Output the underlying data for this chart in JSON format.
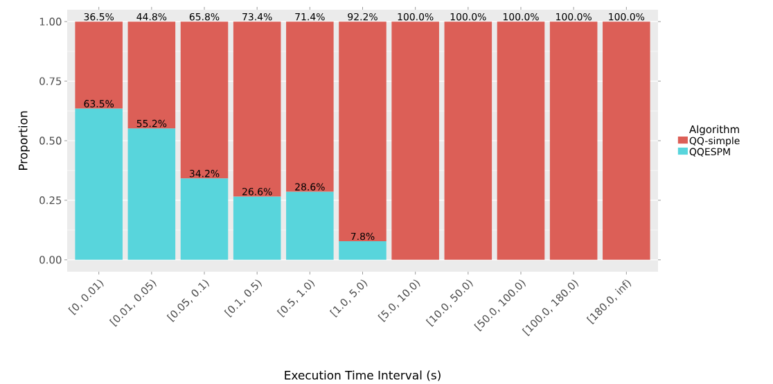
{
  "chart_data": {
    "type": "bar",
    "stacked": true,
    "xlabel": "Execution Time Interval (s)",
    "ylabel": "Proportion",
    "legend_title": "Algorithm",
    "legend": "right",
    "grid": "y",
    "categories": [
      "[0, 0.01)",
      "[0.01, 0.05)",
      "[0.05, 0.1)",
      "[0.1, 0.5)",
      "[0.5, 1.0)",
      "[1.0, 5.0)",
      "[5.0, 10.0)",
      "[10.0, 50.0)",
      "[50.0, 100.0)",
      "[100.0, 180.0)",
      "[180.0, inf)"
    ],
    "ylim": [
      -0.05,
      1.05
    ],
    "yticks": [
      {
        "value": 0,
        "label": "0.00"
      },
      {
        "value": 0.25,
        "label": "0.25"
      },
      {
        "value": 0.5,
        "label": "0.50"
      },
      {
        "value": 0.75,
        "label": "0.75"
      },
      {
        "value": 1,
        "label": "1.00"
      }
    ],
    "series": [
      {
        "name": "QQESPM",
        "color": "#58D5DC",
        "values": [
          0.635,
          0.552,
          0.342,
          0.266,
          0.286,
          0.078,
          0,
          0,
          0,
          0,
          0
        ],
        "value_labels": [
          "63.5%",
          "55.2%",
          "34.2%",
          "26.6%",
          "28.6%",
          "7.8%",
          null,
          null,
          null,
          null,
          null
        ]
      },
      {
        "name": "QQ-simple",
        "color": "#DC5F57",
        "values": [
          0.365,
          0.448,
          0.658,
          0.734,
          0.714,
          0.922,
          1,
          1,
          1,
          1,
          1
        ],
        "value_labels": [
          "36.5%",
          "44.8%",
          "65.8%",
          "73.4%",
          "71.4%",
          "92.2%",
          "100.0%",
          "100.0%",
          "100.0%",
          "100.0%",
          "100.0%"
        ]
      }
    ]
  }
}
